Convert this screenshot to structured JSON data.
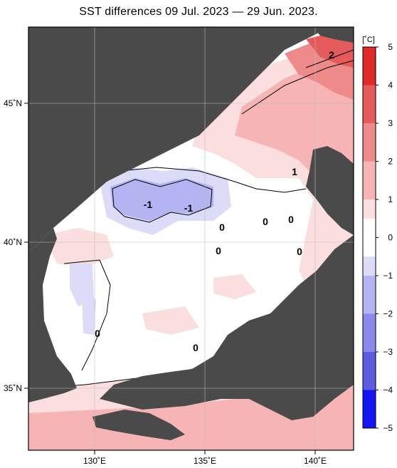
{
  "title": "SST differences 09 Jul. 2023 — 29 Jun. 2023.",
  "colors": {
    "land": "#4a4a4a",
    "zero": "#ffffff",
    "pos1": "#fbdede",
    "pos2": "#f6b4b4",
    "pos3": "#ef8a8a",
    "pos4": "#e55a5a",
    "pos5": "#de2a2a",
    "neg1": "#dcdcf8",
    "neg2": "#b4b4f2",
    "neg3": "#8a8aea",
    "neg4": "#5c5ce2",
    "neg5": "#1414f0",
    "grid": "#bdbdbd"
  },
  "map": {
    "lon_labels": [
      "130˚E",
      "135˚E",
      "140˚E"
    ],
    "lat_labels": [
      "45˚N",
      "40˚N",
      "35˚N"
    ],
    "contour_labels": [
      "2",
      "1",
      "-1",
      "-1",
      "0",
      "0",
      "0",
      "0",
      "0",
      "0",
      "0"
    ]
  },
  "colorbar": {
    "unit": "[˚C]",
    "ticks": [
      "5",
      "4",
      "3",
      "2",
      "1",
      "0",
      "−1",
      "−2",
      "−3",
      "−4",
      "−5"
    ]
  }
}
